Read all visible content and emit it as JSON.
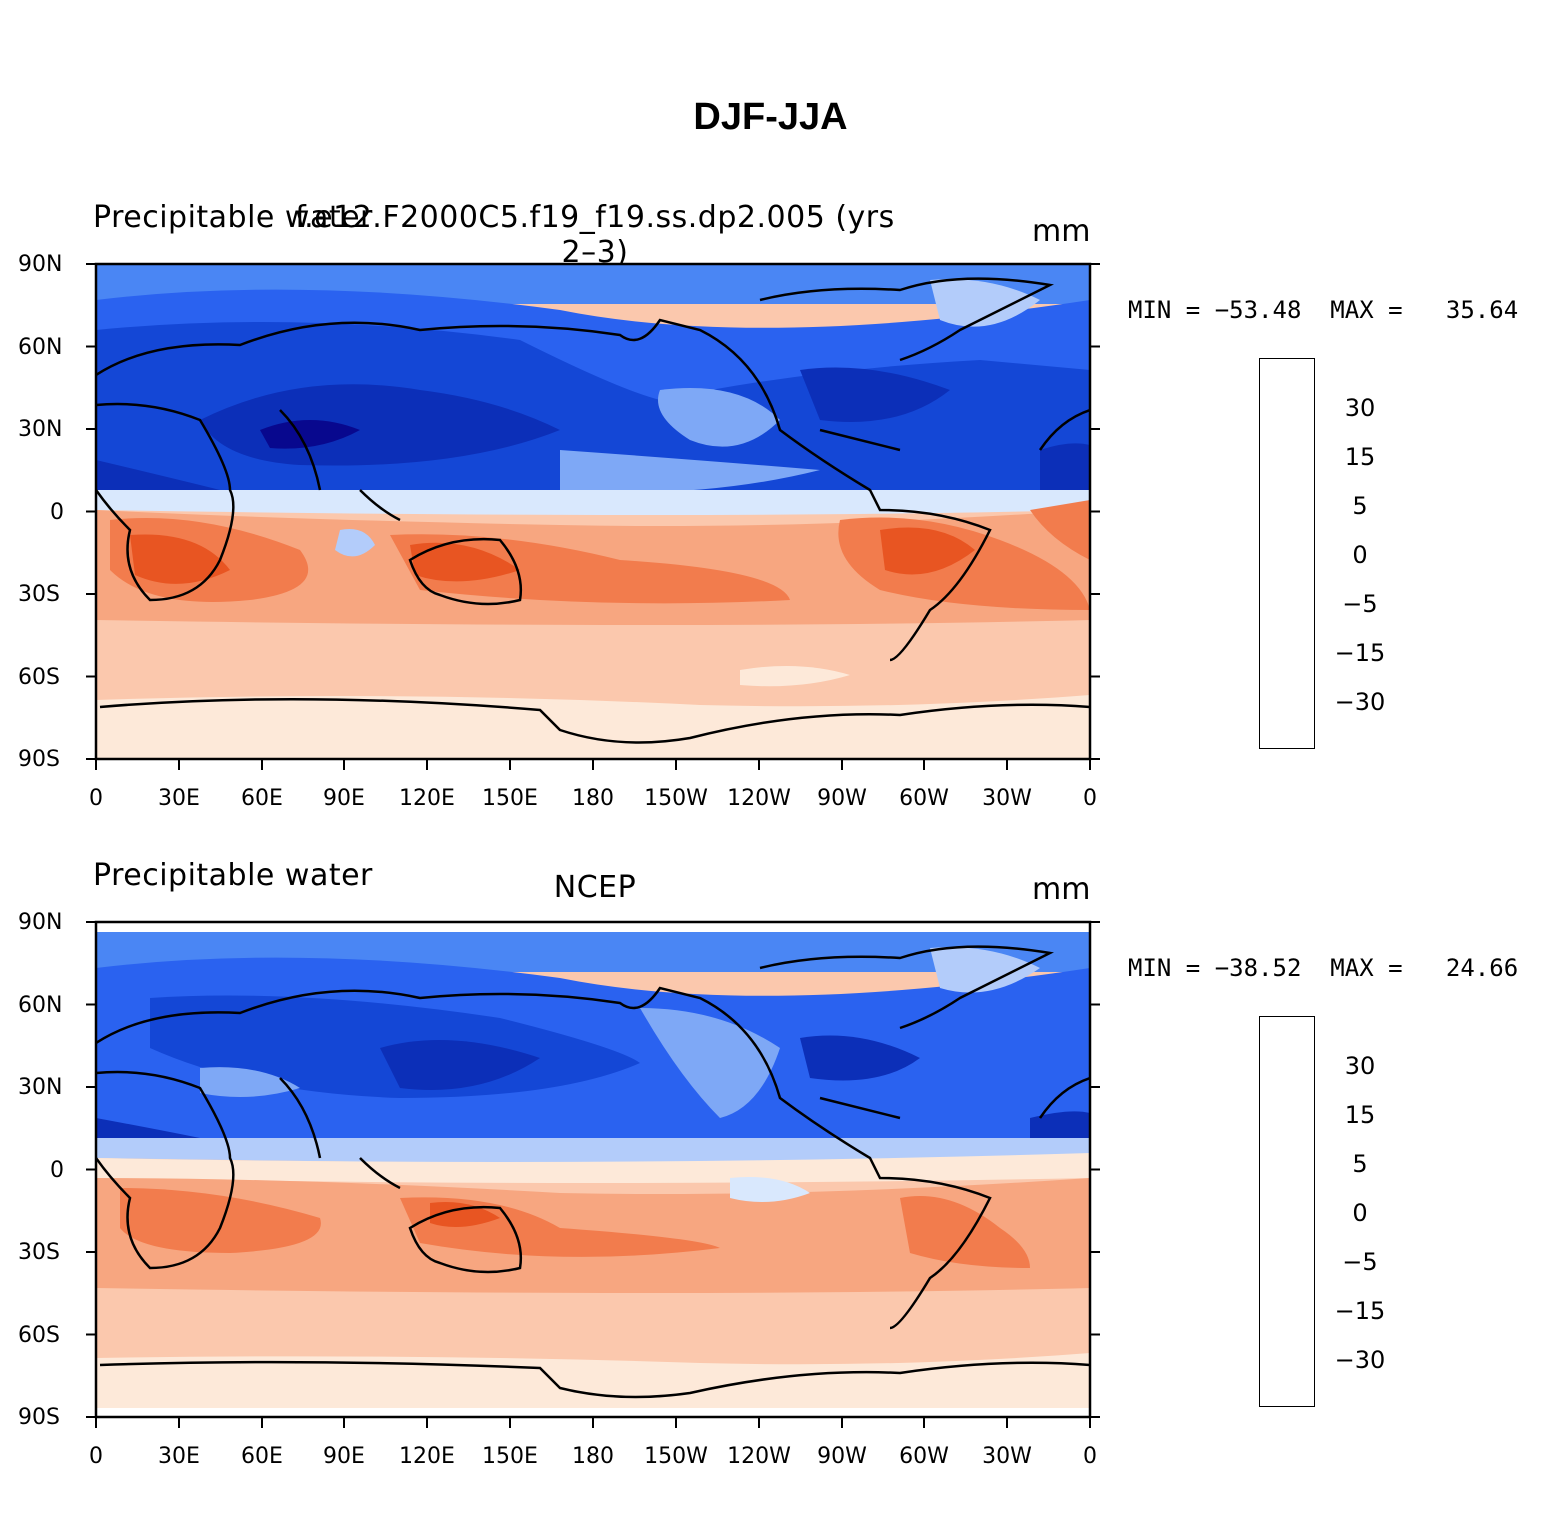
{
  "title": "DJF-JJA",
  "colors": {
    "scale": [
      "#08088e",
      "#0c2fb8",
      "#1447d6",
      "#2a62f0",
      "#4a86f4",
      "#7ea8f6",
      "#b3ccfa",
      "#d9e8fd",
      "#fde9d9",
      "#fbc8ad",
      "#f7a680",
      "#f27c4d",
      "#e85522",
      "#c62e0f",
      "#8b0000"
    ],
    "land": "#000000"
  },
  "colorbar_labels": [
    "30",
    "15",
    "5",
    "0",
    "−5",
    "−15",
    "−30"
  ],
  "lat_ticks": [
    "90N",
    "60N",
    "30N",
    "0",
    "30S",
    "60S",
    "90S"
  ],
  "lon_ticks": [
    "0",
    "30E",
    "60E",
    "90E",
    "120E",
    "150E",
    "180",
    "150W",
    "120W",
    "90W",
    "60W",
    "30W",
    "0"
  ],
  "panels": [
    {
      "left_label": "Precipitable water",
      "center_label": "f.e12.F2000C5.f19_f19.ss.dp2.005 (yrs 2–3)",
      "right_label": "mm",
      "min_label": "MIN = −53.48",
      "max_label": "MAX =   35.64"
    },
    {
      "left_label": "Precipitable water",
      "center_label": "NCEP",
      "right_label": "mm",
      "min_label": "MIN = −38.52",
      "max_label": "MAX =   24.66"
    }
  ]
}
